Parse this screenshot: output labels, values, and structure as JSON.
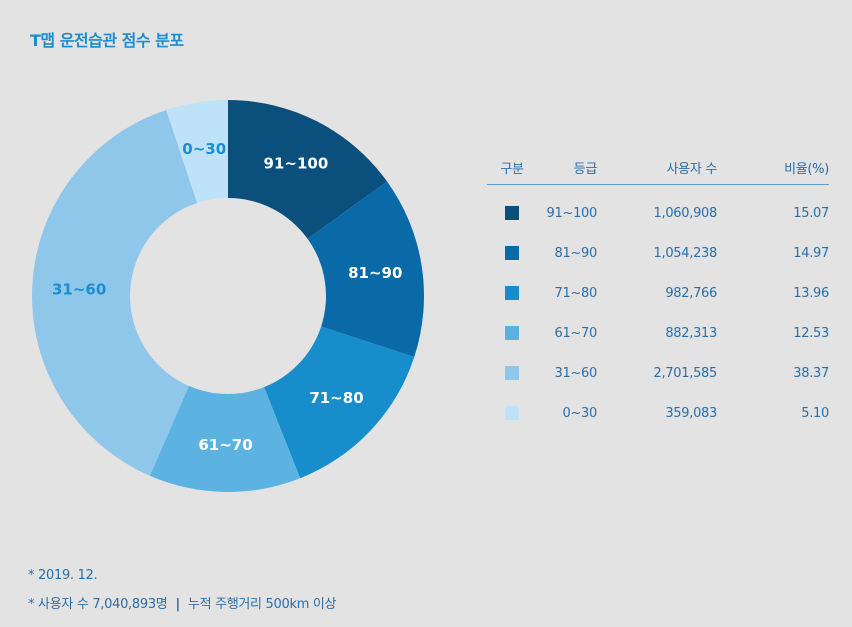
{
  "title": "T맵 운전습관 점수 분포",
  "chart_data": {
    "type": "pie",
    "subtype": "donut",
    "title": "T맵 운전습관 점수 분포",
    "categories": [
      "91~100",
      "81~90",
      "71~80",
      "61~70",
      "31~60",
      "0~30"
    ],
    "users": [
      1060908,
      1054238,
      982766,
      882313,
      2701585,
      359083
    ],
    "values": [
      15.07,
      14.97,
      13.96,
      12.53,
      38.37,
      5.1
    ],
    "colors": [
      "#0b4f7c",
      "#0a6aa8",
      "#178dcb",
      "#5cb3e2",
      "#8fc7ea",
      "#bee3f8"
    ],
    "label_colors": [
      "#ffffff",
      "#ffffff",
      "#ffffff",
      "#ffffff",
      "#1a8ed0",
      "#1a8ed0"
    ],
    "start": "12 o'clock, clockwise"
  },
  "table": {
    "headers": [
      "구분",
      "등급",
      "사용자 수",
      "비율(%)"
    ],
    "rows": [
      {
        "grade": "91~100",
        "users": "1,060,908",
        "ratio": "15.07"
      },
      {
        "grade": "81~90",
        "users": "1,054,238",
        "ratio": "14.97"
      },
      {
        "grade": "71~80",
        "users": "982,766",
        "ratio": "13.96"
      },
      {
        "grade": "61~70",
        "users": "882,313",
        "ratio": "12.53"
      },
      {
        "grade": "31~60",
        "users": "2,701,585",
        "ratio": "38.37"
      },
      {
        "grade": "0~30",
        "users": "359,083",
        "ratio": "5.10"
      }
    ]
  },
  "footnotes": {
    "date": "* 2019. 12.",
    "users_total": "* 사용자 수 7,040,893명",
    "separator": "|",
    "criteria": "누적 주행거리 500km 이상"
  }
}
